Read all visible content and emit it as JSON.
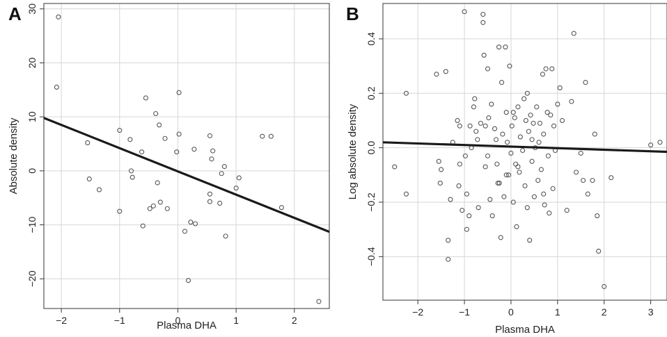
{
  "chart_data": [
    {
      "panel": "A",
      "type": "scatter",
      "xlabel": "Plasma DHA",
      "ylabel": "Absolute density",
      "xlim": [
        -2.3,
        2.6
      ],
      "ylim": [
        -25.5,
        31
      ],
      "xticks": [
        -2,
        -1,
        0,
        1,
        2
      ],
      "yticks": [
        -20,
        -10,
        0,
        10,
        20,
        30
      ],
      "xtick_labels": [
        "−2",
        "−1",
        "0",
        "1",
        "2"
      ],
      "ytick_labels": [
        "−20",
        "−10",
        "0",
        "10",
        "20",
        "30"
      ],
      "grid": true,
      "points": [
        [
          -2.05,
          28.5
        ],
        [
          -2.08,
          15.5
        ],
        [
          -1.55,
          5.2
        ],
        [
          -1.52,
          -1.5
        ],
        [
          -1.35,
          -3.5
        ],
        [
          -1.0,
          7.5
        ],
        [
          -1.0,
          -7.5
        ],
        [
          -0.82,
          5.8
        ],
        [
          -0.8,
          0.0
        ],
        [
          -0.78,
          -1.2
        ],
        [
          -0.62,
          3.5
        ],
        [
          -0.6,
          -10.2
        ],
        [
          -0.55,
          13.5
        ],
        [
          -0.48,
          -7.0
        ],
        [
          -0.42,
          -6.5
        ],
        [
          -0.38,
          10.6
        ],
        [
          -0.35,
          -2.2
        ],
        [
          -0.32,
          8.5
        ],
        [
          -0.3,
          -5.8
        ],
        [
          -0.22,
          6.0
        ],
        [
          -0.18,
          -7.0
        ],
        [
          -0.02,
          3.5
        ],
        [
          0.02,
          14.5
        ],
        [
          0.02,
          6.8
        ],
        [
          0.12,
          -11.2
        ],
        [
          0.18,
          -20.3
        ],
        [
          0.22,
          -9.5
        ],
        [
          0.28,
          4.0
        ],
        [
          0.3,
          -9.8
        ],
        [
          0.55,
          6.5
        ],
        [
          0.55,
          -4.3
        ],
        [
          0.58,
          2.2
        ],
        [
          0.6,
          3.7
        ],
        [
          0.55,
          -5.7
        ],
        [
          0.72,
          -6.0
        ],
        [
          0.75,
          -0.5
        ],
        [
          0.8,
          0.8
        ],
        [
          0.82,
          -12.1
        ],
        [
          1.0,
          -3.2
        ],
        [
          1.05,
          -1.3
        ],
        [
          1.45,
          6.4
        ],
        [
          1.6,
          6.4
        ],
        [
          1.78,
          -6.8
        ],
        [
          2.42,
          -24.2
        ]
      ],
      "fit_line": {
        "x": [
          -2.3,
          2.6
        ],
        "y": [
          9.8,
          -11.3
        ]
      }
    },
    {
      "panel": "B",
      "type": "scatter",
      "xlabel": "Plasma DHA",
      "ylabel": "Log absolute density",
      "xlim": [
        -2.75,
        3.35
      ],
      "ylim": [
        -0.56,
        0.53
      ],
      "xticks": [
        -2,
        -1,
        0,
        1,
        2,
        3
      ],
      "yticks": [
        -0.4,
        -0.2,
        0.0,
        0.2,
        0.4
      ],
      "xtick_labels": [
        "−2",
        "−1",
        "0",
        "1",
        "2",
        "3"
      ],
      "ytick_labels": [
        "−0.4",
        "−0.2",
        "0.0",
        "0.2",
        "0.4"
      ],
      "grid": true,
      "points": [
        [
          -2.5,
          -0.07
        ],
        [
          -2.25,
          0.2
        ],
        [
          -2.25,
          -0.17
        ],
        [
          -1.6,
          0.27
        ],
        [
          -1.55,
          -0.05
        ],
        [
          -1.5,
          -0.08
        ],
        [
          -1.52,
          -0.13
        ],
        [
          -1.4,
          0.28
        ],
        [
          -1.35,
          -0.34
        ],
        [
          -1.35,
          -0.41
        ],
        [
          -1.3,
          -0.19
        ],
        [
          -1.25,
          0.02
        ],
        [
          -1.15,
          0.1
        ],
        [
          -1.1,
          0.08
        ],
        [
          -1.1,
          -0.06
        ],
        [
          -1.12,
          -0.14
        ],
        [
          -1.05,
          -0.23
        ],
        [
          -1.0,
          0.5
        ],
        [
          -0.98,
          -0.03
        ],
        [
          -0.95,
          -0.17
        ],
        [
          -0.95,
          -0.3
        ],
        [
          -0.9,
          -0.25
        ],
        [
          -0.88,
          0.08
        ],
        [
          -0.85,
          0.0
        ],
        [
          -0.8,
          0.15
        ],
        [
          -0.78,
          0.18
        ],
        [
          -0.75,
          0.06
        ],
        [
          -0.72,
          0.03
        ],
        [
          -0.7,
          -0.22
        ],
        [
          -0.65,
          0.09
        ],
        [
          -0.6,
          0.49
        ],
        [
          -0.6,
          0.46
        ],
        [
          -0.58,
          0.34
        ],
        [
          -0.55,
          0.08
        ],
        [
          -0.55,
          -0.07
        ],
        [
          -0.5,
          0.29
        ],
        [
          -0.48,
          0.11
        ],
        [
          -0.45,
          -0.19
        ],
        [
          -0.42,
          0.16
        ],
        [
          -0.4,
          -0.25
        ],
        [
          -0.35,
          0.07
        ],
        [
          -0.32,
          0.03
        ],
        [
          -0.3,
          -0.06
        ],
        [
          -0.28,
          -0.13
        ],
        [
          -0.26,
          0.37
        ],
        [
          -0.22,
          -0.33
        ],
        [
          -0.2,
          0.24
        ],
        [
          -0.18,
          0.05
        ],
        [
          -0.15,
          -0.18
        ],
        [
          -0.12,
          0.37
        ],
        [
          -0.1,
          0.13
        ],
        [
          -0.08,
          0.02
        ],
        [
          -0.05,
          -0.1
        ],
        [
          -0.03,
          0.3
        ],
        [
          0.0,
          -0.02
        ],
        [
          0.02,
          0.08
        ],
        [
          0.05,
          -0.2
        ],
        [
          0.08,
          0.11
        ],
        [
          0.1,
          -0.06
        ],
        [
          0.12,
          -0.29
        ],
        [
          0.15,
          0.15
        ],
        [
          0.18,
          -0.09
        ],
        [
          0.2,
          0.04
        ],
        [
          0.25,
          -0.01
        ],
        [
          0.28,
          0.18
        ],
        [
          0.3,
          -0.14
        ],
        [
          0.32,
          0.1
        ],
        [
          0.35,
          -0.22
        ],
        [
          0.38,
          0.06
        ],
        [
          0.4,
          -0.34
        ],
        [
          0.42,
          0.12
        ],
        [
          0.45,
          -0.05
        ],
        [
          0.48,
          0.09
        ],
        [
          0.5,
          -0.18
        ],
        [
          0.52,
          0.0
        ],
        [
          0.55,
          0.15
        ],
        [
          0.58,
          -0.12
        ],
        [
          0.6,
          0.02
        ],
        [
          0.62,
          0.09
        ],
        [
          0.65,
          -0.08
        ],
        [
          0.68,
          0.27
        ],
        [
          0.7,
          0.05
        ],
        [
          0.72,
          -0.21
        ],
        [
          0.75,
          0.29
        ],
        [
          0.78,
          0.13
        ],
        [
          0.8,
          -0.03
        ],
        [
          0.82,
          -0.24
        ],
        [
          0.85,
          0.12
        ],
        [
          0.88,
          0.29
        ],
        [
          0.9,
          -0.15
        ],
        [
          0.92,
          0.08
        ],
        [
          0.95,
          -0.01
        ],
        [
          1.0,
          0.16
        ],
        [
          1.05,
          0.22
        ],
        [
          1.1,
          0.1
        ],
        [
          1.2,
          -0.23
        ],
        [
          1.3,
          0.17
        ],
        [
          1.35,
          0.42
        ],
        [
          1.4,
          -0.09
        ],
        [
          1.5,
          -0.02
        ],
        [
          1.55,
          -0.12
        ],
        [
          1.6,
          0.24
        ],
        [
          1.65,
          -0.17
        ],
        [
          1.75,
          -0.12
        ],
        [
          1.8,
          0.05
        ],
        [
          1.85,
          -0.25
        ],
        [
          1.88,
          -0.38
        ],
        [
          2.0,
          -0.51
        ],
        [
          2.15,
          -0.11
        ],
        [
          3.0,
          0.01
        ],
        [
          3.2,
          0.02
        ],
        [
          -0.1,
          -0.1
        ],
        [
          0.15,
          -0.07
        ],
        [
          0.35,
          0.2
        ],
        [
          -0.5,
          -0.03
        ],
        [
          0.7,
          -0.17
        ],
        [
          0.45,
          0.03
        ],
        [
          -0.25,
          -0.13
        ],
        [
          0.05,
          0.13
        ]
      ],
      "fit_line": {
        "x": [
          -2.75,
          3.35
        ],
        "y": [
          0.02,
          -0.015
        ]
      }
    }
  ]
}
